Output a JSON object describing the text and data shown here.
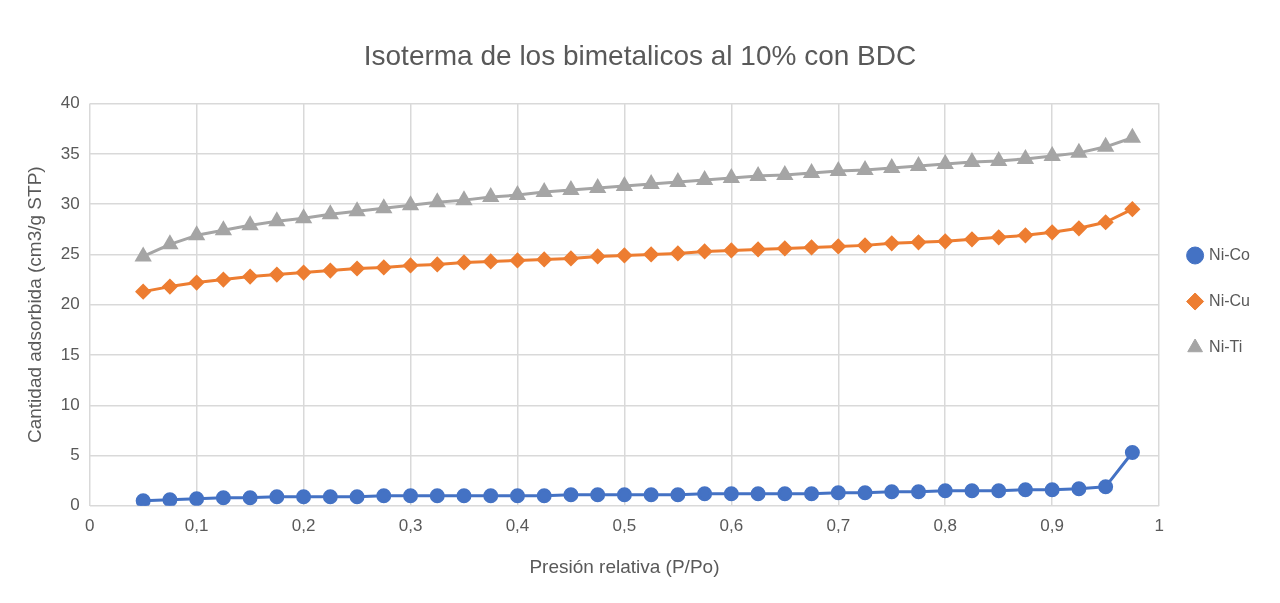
{
  "chart_data": {
    "type": "line",
    "title": "Isoterma de los bimetalicos al 10% con BDC",
    "xlabel": "Presión relativa (P/Po)",
    "ylabel": "Cantidad adsorbida (cm3/g STP)",
    "x": [
      0.05,
      0.075,
      0.1,
      0.125,
      0.15,
      0.175,
      0.2,
      0.225,
      0.25,
      0.275,
      0.3,
      0.325,
      0.35,
      0.375,
      0.4,
      0.425,
      0.45,
      0.475,
      0.5,
      0.525,
      0.55,
      0.575,
      0.6,
      0.625,
      0.65,
      0.675,
      0.7,
      0.725,
      0.75,
      0.775,
      0.8,
      0.825,
      0.85,
      0.875,
      0.9,
      0.925,
      0.95,
      0.975
    ],
    "series": [
      {
        "name": "Ni-Co",
        "color": "#4472c4",
        "marker": "circle",
        "values": [
          0.5,
          0.6,
          0.7,
          0.8,
          0.8,
          0.9,
          0.9,
          0.9,
          0.9,
          1.0,
          1.0,
          1.0,
          1.0,
          1.0,
          1.0,
          1.0,
          1.1,
          1.1,
          1.1,
          1.1,
          1.1,
          1.2,
          1.2,
          1.2,
          1.2,
          1.2,
          1.3,
          1.3,
          1.4,
          1.4,
          1.5,
          1.5,
          1.5,
          1.6,
          1.6,
          1.7,
          1.9,
          5.3
        ]
      },
      {
        "name": "Ni-Cu",
        "color": "#ed7d31",
        "marker": "diamond",
        "values": [
          21.3,
          21.8,
          22.2,
          22.5,
          22.8,
          23.0,
          23.2,
          23.4,
          23.6,
          23.7,
          23.9,
          24.0,
          24.2,
          24.3,
          24.4,
          24.5,
          24.6,
          24.8,
          24.9,
          25.0,
          25.1,
          25.3,
          25.4,
          25.5,
          25.6,
          25.7,
          25.8,
          25.9,
          26.1,
          26.2,
          26.3,
          26.5,
          26.7,
          26.9,
          27.2,
          27.6,
          28.2,
          29.5
        ]
      },
      {
        "name": "Ni-Ti",
        "color": "#a5a5a5",
        "marker": "triangle",
        "values": [
          24.8,
          26.0,
          26.9,
          27.4,
          27.9,
          28.3,
          28.6,
          29.0,
          29.3,
          29.6,
          29.9,
          30.2,
          30.4,
          30.7,
          30.9,
          31.2,
          31.4,
          31.6,
          31.8,
          32.0,
          32.2,
          32.4,
          32.6,
          32.8,
          32.9,
          33.1,
          33.3,
          33.4,
          33.6,
          33.8,
          34.0,
          34.2,
          34.3,
          34.5,
          34.8,
          35.1,
          35.7,
          36.6
        ]
      }
    ],
    "xlim": [
      0,
      1
    ],
    "xticks": [
      {
        "value": 0,
        "label": "0"
      },
      {
        "value": 0.1,
        "label": "0,1"
      },
      {
        "value": 0.2,
        "label": "0,2"
      },
      {
        "value": 0.3,
        "label": "0,3"
      },
      {
        "value": 0.4,
        "label": "0,4"
      },
      {
        "value": 0.5,
        "label": "0,5"
      },
      {
        "value": 0.6,
        "label": "0,6"
      },
      {
        "value": 0.7,
        "label": "0,7"
      },
      {
        "value": 0.8,
        "label": "0,8"
      },
      {
        "value": 0.9,
        "label": "0,9"
      },
      {
        "value": 1,
        "label": "1"
      }
    ],
    "ylim": [
      0,
      40
    ],
    "yticks": [
      0,
      5,
      10,
      15,
      20,
      25,
      30,
      35,
      40
    ],
    "grid": true,
    "legend": "right",
    "line_style": "solid"
  }
}
